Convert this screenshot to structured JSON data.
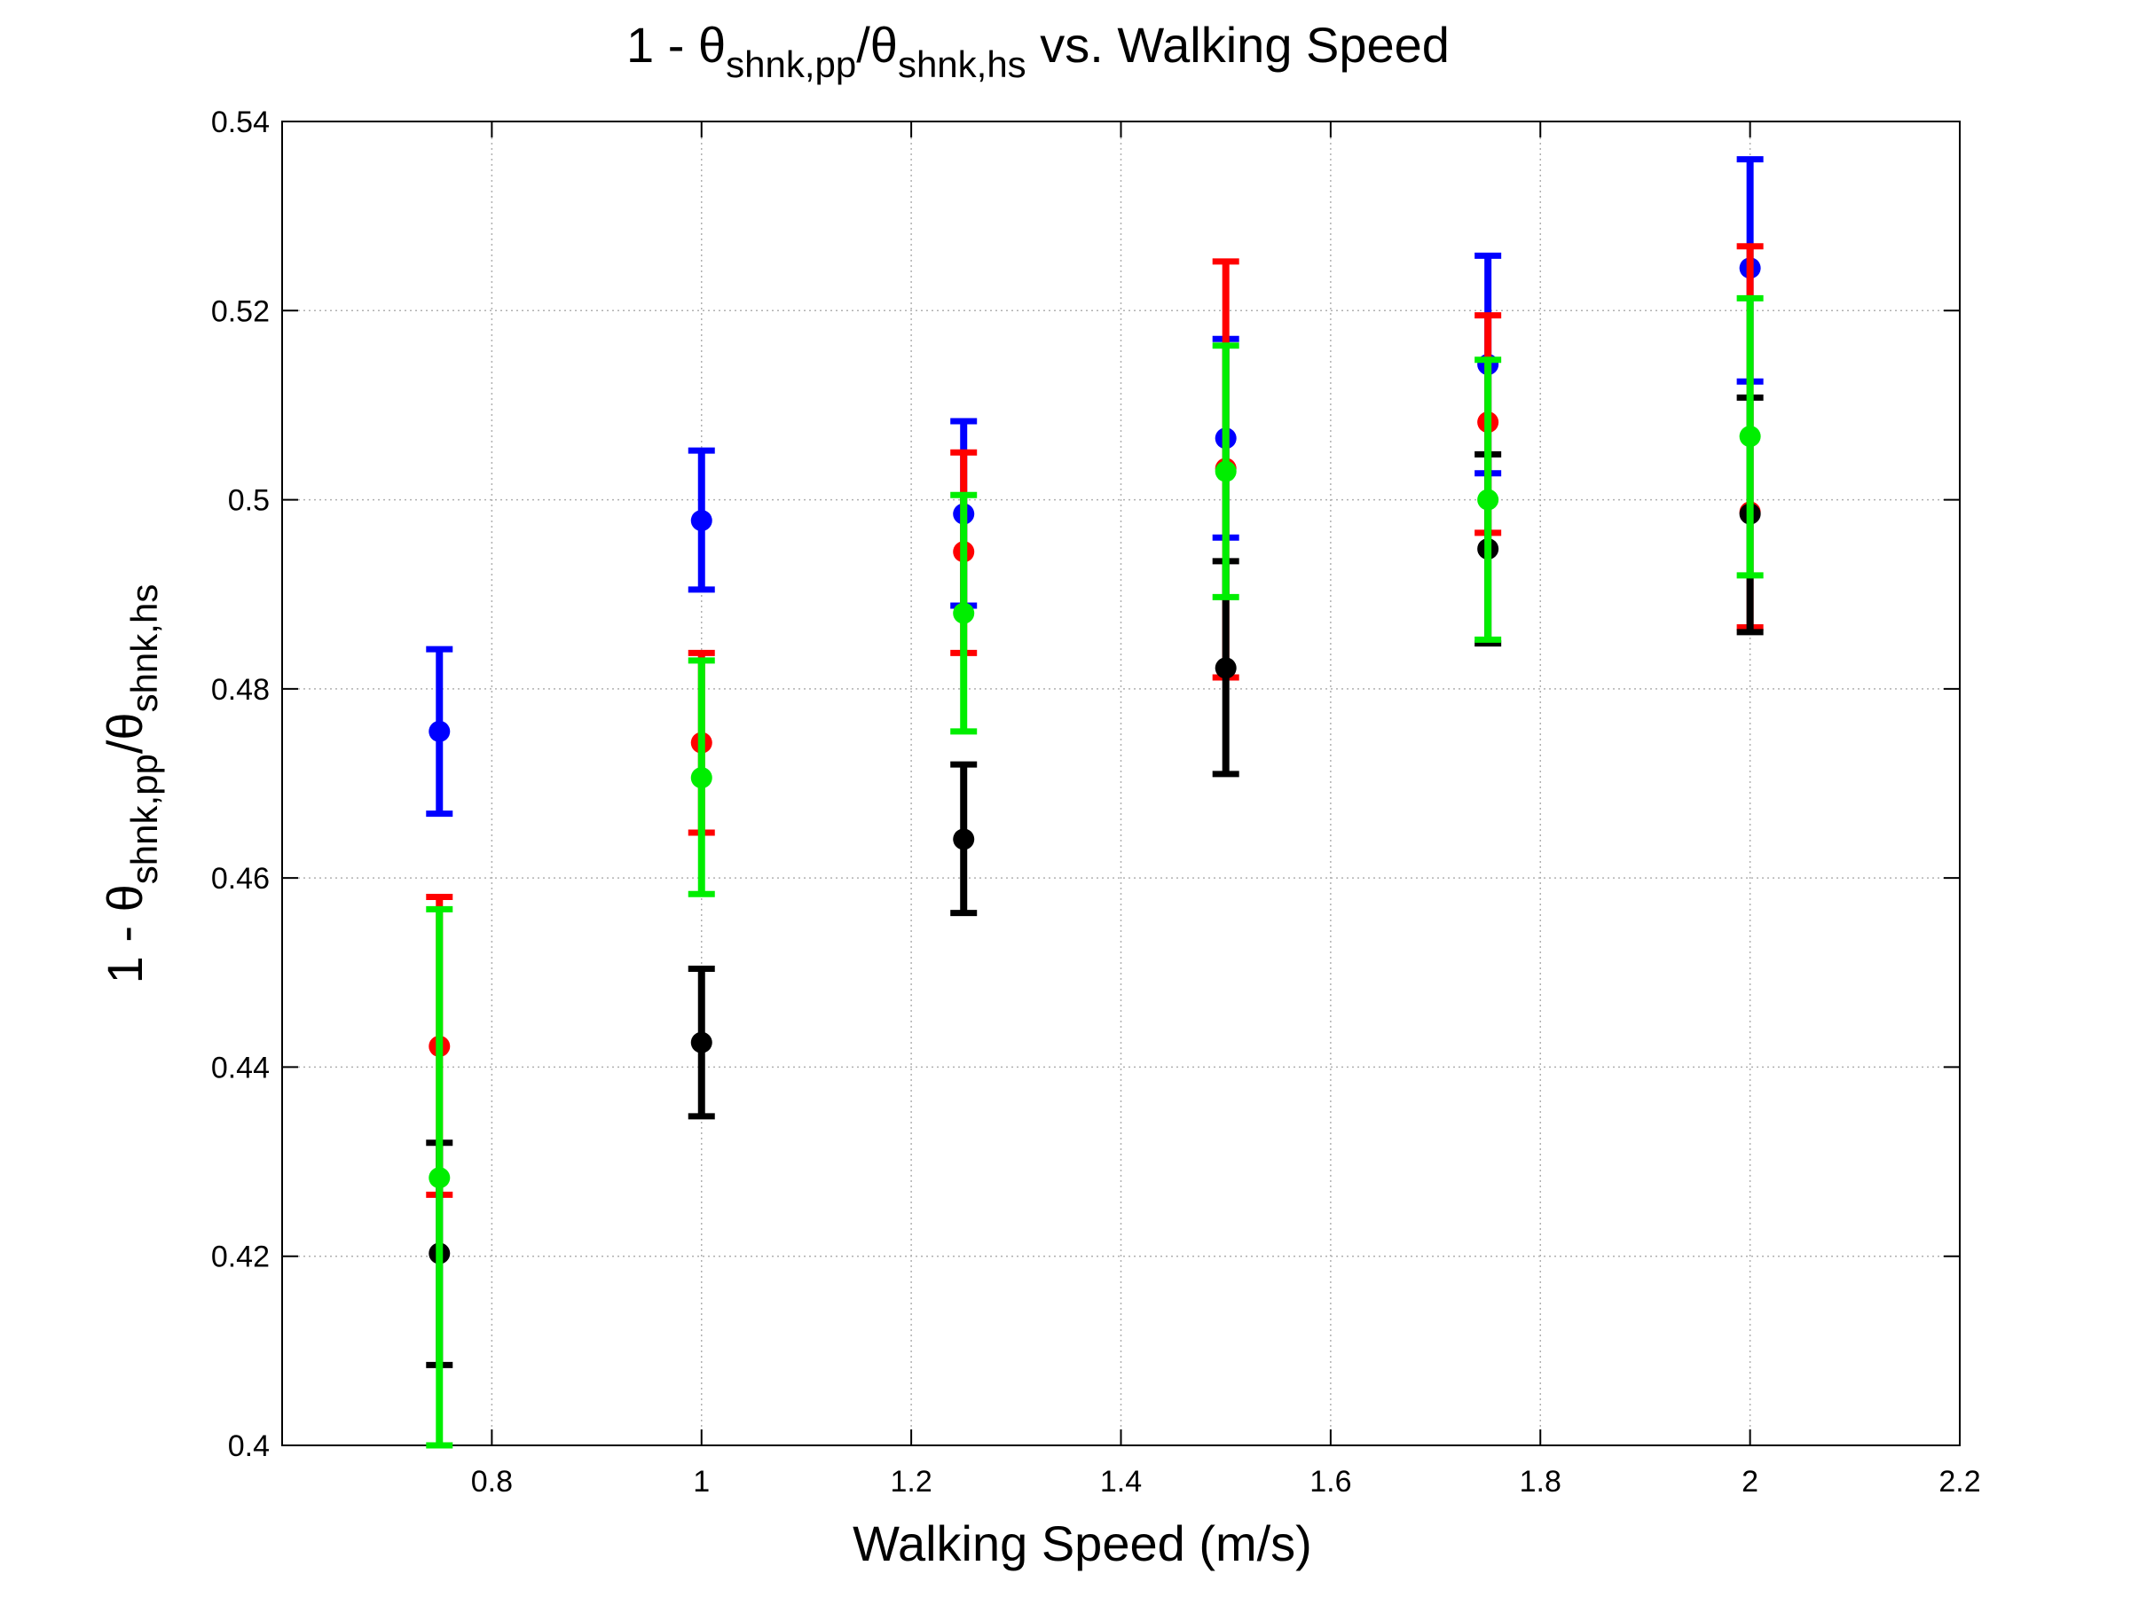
{
  "chart_data": {
    "type": "scatter",
    "title": {
      "prefix": "1 - ",
      "theta1": "θ",
      "sub1": "shnk,pp",
      "slash": "/",
      "theta2": "θ",
      "sub2": "shnk,hs",
      "suffix": " vs. Walking Speed"
    },
    "xlabel": "Walking Speed (m/s)",
    "ylabel": {
      "prefix": "1 - ",
      "theta1": "θ",
      "sub1": "shnk,pp",
      "slash": "/",
      "theta2": "θ",
      "sub2": "shnk,hs"
    },
    "xlim": [
      0.6,
      2.2
    ],
    "ylim": [
      0.4,
      0.54
    ],
    "xticks": [
      0.8,
      1,
      1.2,
      1.4,
      1.6,
      1.8,
      2,
      2.2
    ],
    "xtick_labels": [
      "0.8",
      "1",
      "1.2",
      "1.4",
      "1.6",
      "1.8",
      "2",
      "2.2"
    ],
    "yticks": [
      0.4,
      0.42,
      0.44,
      0.46,
      0.48,
      0.5,
      0.52,
      0.54
    ],
    "ytick_labels": [
      "0.4",
      "0.42",
      "0.44",
      "0.46",
      "0.48",
      "0.5",
      "0.52",
      "0.54"
    ],
    "grid": true,
    "series": [
      {
        "color": "#0000ff",
        "x": [
          0.75,
          1.0,
          1.25,
          1.5,
          1.75,
          2.0
        ],
        "y": [
          0.4755,
          0.4978,
          0.4985,
          0.5065,
          0.5143,
          0.5245
        ],
        "lower": [
          0.4668,
          0.4905,
          0.4888,
          0.496,
          0.5028,
          0.5125
        ],
        "upper": [
          0.4842,
          0.5052,
          0.5083,
          0.517,
          0.5258,
          0.536
        ]
      },
      {
        "color": "#ff0000",
        "x": [
          0.75,
          1.0,
          1.25,
          1.5,
          1.75,
          2.0
        ],
        "y": [
          0.4422,
          0.4743,
          0.4945,
          0.5033,
          0.5082,
          0.4987
        ],
        "lower": [
          0.4265,
          0.4648,
          0.4838,
          0.4812,
          0.4965,
          0.4865
        ],
        "upper": [
          0.458,
          0.4838,
          0.505,
          0.5252,
          0.5195,
          0.5268
        ]
      },
      {
        "color": "#000000",
        "x": [
          0.75,
          1.0,
          1.25,
          1.5,
          1.75,
          2.0
        ],
        "y": [
          0.4203,
          0.4426,
          0.4641,
          0.4822,
          0.4948,
          0.4985
        ],
        "lower": [
          0.4085,
          0.4348,
          0.4563,
          0.471,
          0.4848,
          0.486
        ],
        "upper": [
          0.432,
          0.4504,
          0.472,
          0.4935,
          0.5048,
          0.5108
        ]
      },
      {
        "color": "#00ee00",
        "x": [
          0.75,
          1.0,
          1.25,
          1.5,
          1.75,
          2.0
        ],
        "y": [
          0.4283,
          0.4706,
          0.488,
          0.503,
          0.5,
          0.5067
        ],
        "lower": [
          0.4,
          0.4583,
          0.4755,
          0.4897,
          0.4852,
          0.492
        ],
        "upper": [
          0.4567,
          0.483,
          0.5005,
          0.5163,
          0.5148,
          0.5213
        ]
      }
    ]
  }
}
